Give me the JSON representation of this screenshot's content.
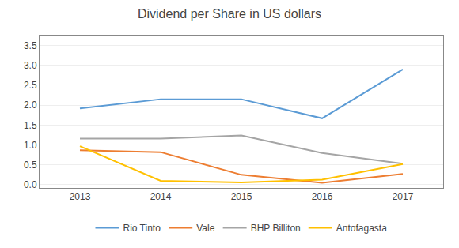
{
  "chart_data": {
    "type": "line",
    "title": "Dividend per Share in US dollars",
    "x": [
      2013,
      2014,
      2015,
      2016,
      2017
    ],
    "series": [
      {
        "name": "Rio Tinto",
        "color": "#5b9bd5",
        "values": [
          1.92,
          2.15,
          2.15,
          1.67,
          2.9
        ]
      },
      {
        "name": "Vale",
        "color": "#ed7d31",
        "values": [
          0.87,
          0.82,
          0.25,
          0.05,
          0.27
        ]
      },
      {
        "name": "BHP Billiton",
        "color": "#a5a5a5",
        "values": [
          1.16,
          1.16,
          1.24,
          0.8,
          0.53
        ]
      },
      {
        "name": "Antofagasta",
        "color": "#ffc000",
        "values": [
          0.97,
          0.1,
          0.06,
          0.13,
          0.52
        ]
      }
    ],
    "xlim": [
      2012.5,
      2017.5
    ],
    "xticks": [
      2013,
      2014,
      2015,
      2016,
      2017
    ],
    "ylim": [
      -0.08,
      3.75
    ],
    "yticks": [
      {
        "value": 0,
        "label": "0.0"
      },
      0.5,
      {
        "value": 1,
        "label": "1.0"
      },
      1.5,
      {
        "value": 2,
        "label": "2.0"
      },
      2.5,
      {
        "value": 3,
        "label": "3.0"
      },
      3.5
    ],
    "grid": true,
    "legend": "bottom"
  }
}
